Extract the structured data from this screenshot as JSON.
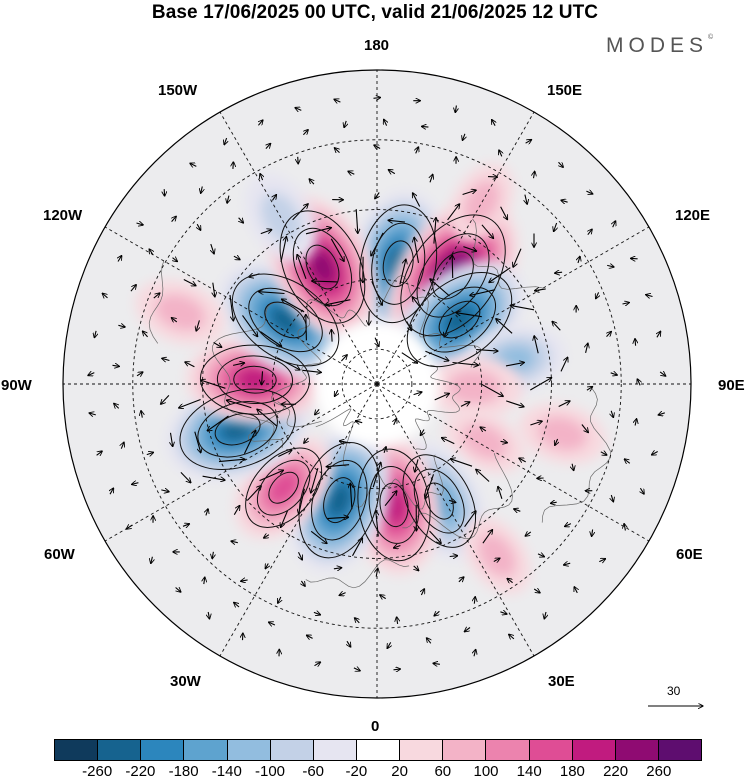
{
  "title": "Base 17/06/2025 00 UTC, valid 21/06/2025 12 UTC",
  "brand": "MODES",
  "brand_mark": "©",
  "longitude_labels": [
    "180",
    "150E",
    "120E",
    "90E",
    "60E",
    "30E",
    "0",
    "30W",
    "60W",
    "90W",
    "120W",
    "150W"
  ],
  "reference_vector": {
    "value": "30"
  },
  "colorbar": {
    "colors": [
      "#0f3a5c",
      "#16638f",
      "#2c86bd",
      "#5ea3cf",
      "#92bddf",
      "#c3d1e7",
      "#e6e5f1",
      "#ffffff",
      "#f8d9df",
      "#f3b3c7",
      "#ec83ae",
      "#df4d95",
      "#c11b7f",
      "#8f0b72",
      "#5e0d6f"
    ],
    "tick_labels": [
      "-260",
      "-220",
      "-180",
      "-140",
      "-100",
      "-60",
      "-20",
      "20",
      "60",
      "100",
      "140",
      "180",
      "220",
      "260"
    ]
  },
  "anomaly_centers": [
    {
      "lon": 170,
      "lat": 55,
      "value": -200
    },
    {
      "lon": 145,
      "lat": 52,
      "value": 250
    },
    {
      "lon": 128,
      "lat": 60,
      "value": -200
    },
    {
      "lon": 100,
      "lat": 50,
      "value": -80
    },
    {
      "lon": 88,
      "lat": 62,
      "value": 60
    },
    {
      "lon": 62,
      "lat": 55,
      "value": 30
    },
    {
      "lon": 28,
      "lat": 52,
      "value": -140
    },
    {
      "lon": 8,
      "lat": 55,
      "value": 180
    },
    {
      "lon": -18,
      "lat": 55,
      "value": -200
    },
    {
      "lon": -42,
      "lat": 50,
      "value": 120
    },
    {
      "lon": -72,
      "lat": 48,
      "value": -200
    },
    {
      "lon": -92,
      "lat": 55,
      "value": 170
    },
    {
      "lon": -125,
      "lat": 58,
      "value": -200
    },
    {
      "lon": -155,
      "lat": 53,
      "value": 200
    },
    {
      "lon": -150,
      "lat": 35,
      "value": -60
    },
    {
      "lon": -110,
      "lat": 30,
      "value": 50
    },
    {
      "lon": 75,
      "lat": 35,
      "value": 40
    },
    {
      "lon": 35,
      "lat": 30,
      "value": 30
    },
    {
      "lon": 150,
      "lat": 30,
      "value": 30
    }
  ]
}
